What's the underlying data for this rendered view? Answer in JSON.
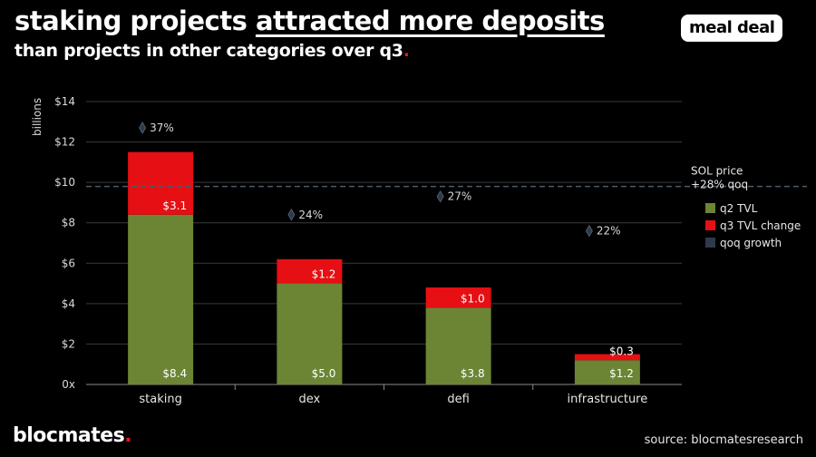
{
  "header": {
    "title_plain": "staking projects",
    "title_underlined": "attracted more deposits",
    "subtitle": "than projects in other categories over q3",
    "subtitle_dot": "."
  },
  "brand": {
    "badge": "meal deal",
    "logo": "blocmates",
    "logo_dot": "."
  },
  "footer": {
    "source": "source: blocmatesresearch"
  },
  "colors": {
    "q2": "#6b8535",
    "q3": "#e60f14",
    "growth_marker": "#2e3a4a",
    "grid": "#3a3a3a",
    "reference_line": "#4a5a6a"
  },
  "chart_data": {
    "type": "bar",
    "stacked": true,
    "ylabel": "billions",
    "ylim": [
      0,
      14
    ],
    "yticks": [
      0,
      2,
      4,
      6,
      8,
      10,
      12,
      14
    ],
    "ytick_labels": [
      "0x",
      "$2",
      "$4",
      "$6",
      "$8",
      "$10",
      "$12",
      "$14"
    ],
    "categories": [
      "staking",
      "dex",
      "defi",
      "infrastructure"
    ],
    "series": [
      {
        "name": "q2 TVL",
        "values": [
          8.4,
          5.0,
          3.8,
          1.2
        ],
        "labels": [
          "$8.4",
          "$5.0",
          "$3.8",
          "$1.2"
        ]
      },
      {
        "name": "q3 TVL change",
        "values": [
          3.1,
          1.2,
          1.0,
          0.3
        ],
        "labels": [
          "$3.1",
          "$1.2",
          "$1.0",
          "$0.3"
        ]
      }
    ],
    "qoq_growth": {
      "name": "qoq growth",
      "labels": [
        "37%",
        "24%",
        "27%",
        "22%"
      ],
      "positions": [
        12.7,
        8.4,
        9.3,
        7.6
      ]
    },
    "reference_line": {
      "value": 9.8,
      "label_lines": [
        "SOL price",
        "+28% qoq"
      ]
    },
    "grid": true,
    "legend": "right"
  }
}
